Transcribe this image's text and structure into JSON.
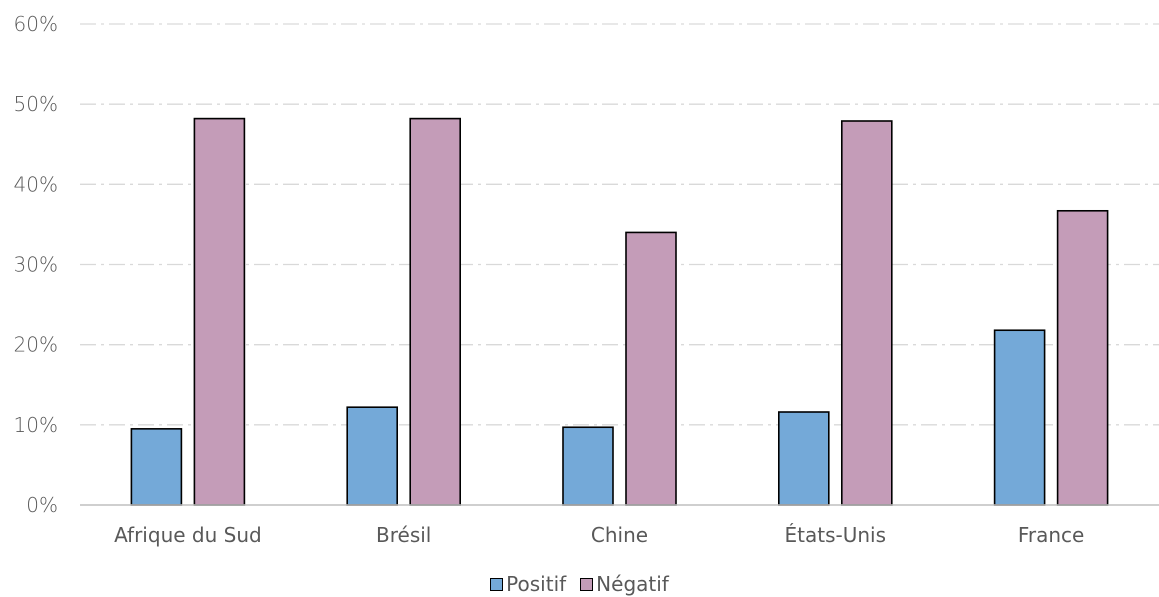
{
  "chart_data": {
    "type": "bar",
    "categories": [
      "Afrique du Sud",
      "Brésil",
      "Chine",
      "États-Unis",
      "France"
    ],
    "series": [
      {
        "name": "Positif",
        "values": [
          9.5,
          12.2,
          9.7,
          11.6,
          21.8
        ],
        "color": "#74A9D8"
      },
      {
        "name": "Négatif",
        "values": [
          48.2,
          48.2,
          34.0,
          47.9,
          36.7
        ],
        "color": "#C49CB8"
      }
    ],
    "yticks": [
      "0%",
      "10%",
      "20%",
      "30%",
      "40%",
      "50%",
      "60%"
    ],
    "ylim": [
      0,
      60
    ],
    "grid": true,
    "legend_position": "bottom",
    "title": "",
    "xlabel": "",
    "ylabel": ""
  }
}
